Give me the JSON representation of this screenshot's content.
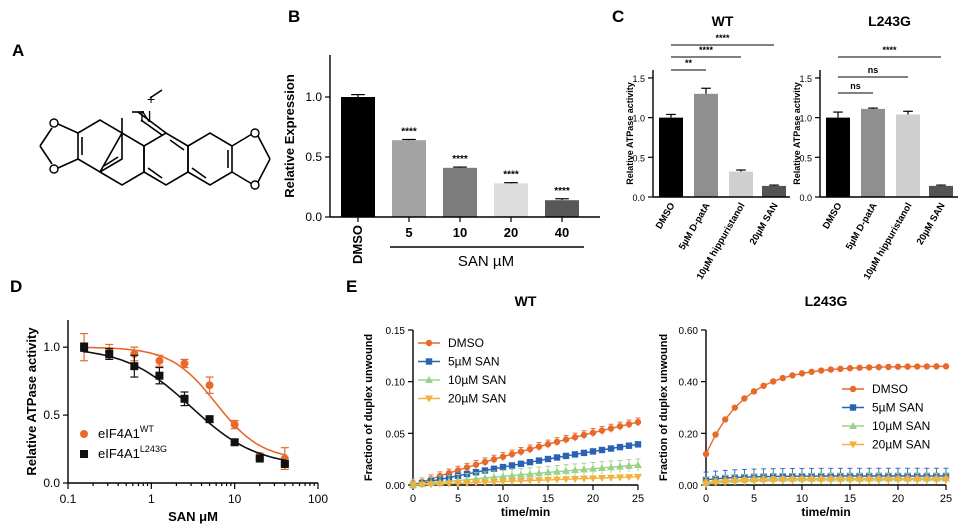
{
  "panel_labels": {
    "a": "A",
    "b": "B",
    "c": "C",
    "d": "D",
    "e": "E"
  },
  "molecule": {
    "n_label": "N",
    "charge": "+"
  },
  "colors": {
    "orange": "#e8692c",
    "blue": "#2a62b4",
    "green": "#9ad28a",
    "yellow": "#f3b23d",
    "black": "#111111"
  },
  "chart_data": [
    {
      "id": "B",
      "type": "bar",
      "categories": [
        "DMSO",
        "5",
        "10",
        "20",
        "40"
      ],
      "values": [
        1.0,
        0.64,
        0.41,
        0.28,
        0.14
      ],
      "errors": [
        0.02,
        0.006,
        0.006,
        0.006,
        0.012
      ],
      "colors": [
        "#000000",
        "#a3a3a3",
        "#7d7d7d",
        "#dcdcdc",
        "#575757"
      ],
      "significance": [
        "",
        "****",
        "****",
        "****",
        "****"
      ],
      "title": "",
      "xlabel": "SAN µM",
      "ylabel": "Relative Expression",
      "yticks": [
        "0.0",
        "0.5",
        "1.0"
      ],
      "ylim": [
        0,
        1.35
      ]
    },
    {
      "id": "C-WT",
      "type": "bar",
      "title": "WT",
      "categories": [
        "DMSO",
        "5µM D-patA",
        "10µM hippuristanol",
        "20µM SAN"
      ],
      "values": [
        1.0,
        1.3,
        0.32,
        0.14
      ],
      "errors": [
        0.04,
        0.07,
        0.02,
        0.01
      ],
      "colors": [
        "#000000",
        "#8f8f8f",
        "#cfcfcf",
        "#545454"
      ],
      "ylabel": "Relative ATPase activity",
      "yticks": [
        "0.0",
        "0.5",
        "1.0",
        "1.5"
      ],
      "ylim": [
        0,
        1.6
      ],
      "comparisons": [
        {
          "from": 0,
          "to": 1,
          "label": "**"
        },
        {
          "from": 0,
          "to": 2,
          "label": "****"
        },
        {
          "from": 0,
          "to": 3,
          "label": "****"
        }
      ]
    },
    {
      "id": "C-L243G",
      "type": "bar",
      "title": "L243G",
      "categories": [
        "DMSO",
        "5µM D-patA",
        "10µM hippuristanol",
        "20µM SAN"
      ],
      "values": [
        1.0,
        1.11,
        1.04,
        0.14
      ],
      "errors": [
        0.07,
        0.01,
        0.04,
        0.01
      ],
      "colors": [
        "#000000",
        "#8f8f8f",
        "#cfcfcf",
        "#545454"
      ],
      "ylabel": "Relative ATPase activity",
      "yticks": [
        "0.0",
        "0.5",
        "1.0",
        "1.5"
      ],
      "ylim": [
        0,
        1.6
      ],
      "comparisons": [
        {
          "from": 0,
          "to": 1,
          "label": "ns"
        },
        {
          "from": 0,
          "to": 2,
          "label": "ns"
        },
        {
          "from": 0,
          "to": 3,
          "label": "****"
        }
      ]
    },
    {
      "id": "D",
      "type": "scatter",
      "title": "",
      "xlabel": "SAN μM",
      "ylabel": "Relative ATPase activity",
      "xscale": "log",
      "xlim": [
        0.1,
        100
      ],
      "ylim": [
        0,
        1.2
      ],
      "xticks": [
        "0.1",
        "1",
        "10",
        "100"
      ],
      "yticks": [
        "0.0",
        "0.5",
        "1.0"
      ],
      "legend": [
        {
          "text": "eIF4A1",
          "sup": "WT",
          "color": "#e8692c",
          "marker": "circle"
        },
        {
          "text": "eIF4A1",
          "sup": "L243G",
          "color": "#111111",
          "marker": "square"
        }
      ],
      "series": [
        {
          "name": "eIF4A1 WT",
          "color": "#e8692c",
          "marker": "circle",
          "x": [
            0.156,
            0.3125,
            0.625,
            1.25,
            2.5,
            5,
            10,
            20,
            40
          ],
          "y": [
            1.0,
            0.97,
            0.95,
            0.9,
            0.88,
            0.72,
            0.43,
            0.2,
            0.18
          ],
          "err": [
            0.1,
            0.05,
            0.05,
            0.04,
            0.03,
            0.06,
            0.03,
            0.02,
            0.08
          ],
          "fit": {
            "top": 1.0,
            "bottom": 0.17,
            "ec50": 6.0,
            "hill": 1.6
          }
        },
        {
          "name": "eIF4A1 L243G",
          "color": "#111111",
          "marker": "square",
          "x": [
            0.156,
            0.3125,
            0.625,
            1.25,
            2.5,
            5,
            10,
            20,
            40
          ],
          "y": [
            1.0,
            0.95,
            0.86,
            0.79,
            0.62,
            0.47,
            0.3,
            0.18,
            0.14
          ],
          "err": [
            0.03,
            0.04,
            0.08,
            0.06,
            0.05,
            0.02,
            0.02,
            0.01,
            0.01
          ],
          "fit": {
            "top": 1.0,
            "bottom": 0.12,
            "ec50": 3.0,
            "hill": 1.1
          }
        }
      ]
    },
    {
      "id": "E-WT",
      "type": "line",
      "title": "WT",
      "xlabel": "time/min",
      "ylabel": "Fraction of duplex unwound",
      "xlim": [
        0,
        25
      ],
      "ylim": [
        0,
        0.15
      ],
      "xticks": [
        "0",
        "5",
        "10",
        "15",
        "20",
        "25"
      ],
      "yticks": [
        "0.00",
        "0.05",
        "0.10",
        "0.15"
      ],
      "x_step": 1,
      "series": [
        {
          "name": "DMSO",
          "color": "#e8692c",
          "marker": "circle",
          "plateau": 0.18,
          "rate": 0.03,
          "err": 0.004
        },
        {
          "name": "5µM SAN",
          "color": "#2a62b4",
          "marker": "square",
          "plateau": 0.14,
          "rate": 0.024,
          "err": 0.002
        },
        {
          "name": "10µM SAN",
          "color": "#9ad28a",
          "marker": "triangle",
          "plateau": 0.08,
          "rate": 0.02,
          "err": 0.006
        },
        {
          "name": "20µM SAN",
          "color": "#f3b23d",
          "marker": "tri-down",
          "plateau": 0.04,
          "rate": 0.016,
          "err": 0.002
        }
      ]
    },
    {
      "id": "E-L243G",
      "type": "line",
      "title": "L243G",
      "xlabel": "time/min",
      "ylabel": "Fraction of duplex unwound",
      "xlim": [
        0,
        25
      ],
      "ylim": [
        0,
        0.6
      ],
      "xticks": [
        "0",
        "5",
        "10",
        "15",
        "20",
        "25"
      ],
      "yticks": [
        "0.00",
        "0.20",
        "0.40",
        "0.60"
      ],
      "x_step": 1,
      "series": [
        {
          "name": "DMSO",
          "color": "#e8692c",
          "marker": "circle",
          "start": 0.12,
          "plateau": 0.46,
          "rate": 0.25,
          "err": 0.0
        },
        {
          "name": "5µM SAN",
          "color": "#2a62b4",
          "marker": "square",
          "start": 0.02,
          "plateau": 0.035,
          "rate": 0.3,
          "err": 0.03
        },
        {
          "name": "10µM SAN",
          "color": "#9ad28a",
          "marker": "triangle",
          "start": 0.01,
          "plateau": 0.025,
          "rate": 0.3,
          "err": 0.02
        },
        {
          "name": "20µM SAN",
          "color": "#f3b23d",
          "marker": "tri-down",
          "start": 0.005,
          "plateau": 0.02,
          "rate": 0.3,
          "err": 0.015
        }
      ]
    }
  ]
}
